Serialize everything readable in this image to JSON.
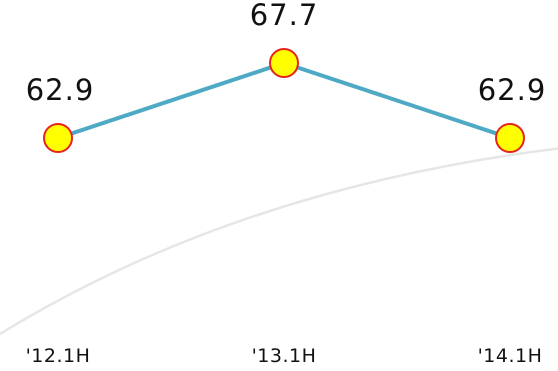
{
  "chart_data": {
    "type": "line",
    "categories": [
      "'12.1H",
      "'13.1H",
      "'14.1H"
    ],
    "values": [
      62.9,
      67.7,
      62.9
    ],
    "data_labels": [
      "62.9",
      "67.7",
      "62.9"
    ],
    "title": "",
    "xlabel": "",
    "ylabel": "",
    "grid": false,
    "line_color": "#4eaac4",
    "marker_fill": "#ffff00",
    "marker_stroke": "#e8221c",
    "background_curve_color": "#e6e6e6"
  }
}
